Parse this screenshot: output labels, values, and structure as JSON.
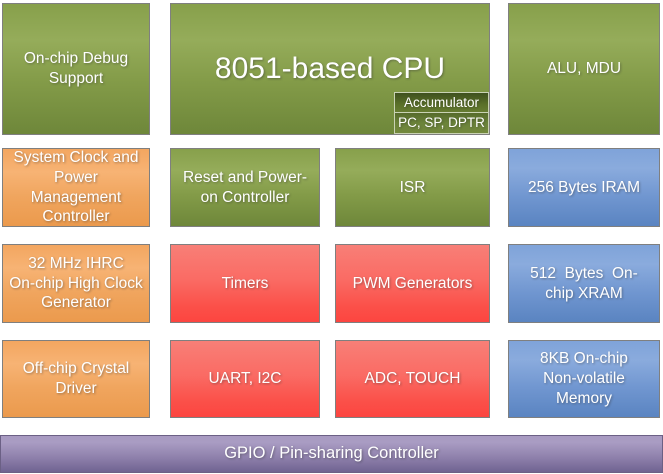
{
  "palette": {
    "green_top": "#95AC5A",
    "green_bottom": "#6E873A",
    "orange_top": "#F7B374",
    "orange_bottom": "#EB9A4D",
    "red_top": "#F87F77",
    "red_bottom": "#FC4540",
    "blue_top": "#7FA3D9",
    "blue_bottom": "#5A84C1",
    "purple_top": "#A89AC1",
    "purple_bottom": "#6F6391",
    "accumulator_dark": "#3F511E",
    "border": "#7F7F7F",
    "text": "#FFFFFF"
  },
  "blocks": {
    "debug": {
      "label": "On-chip Debug\nSupport"
    },
    "cpu": {
      "label": "8051-based CPU",
      "sub": {
        "accumulator": "Accumulator",
        "registers": "PC, SP, DPTR"
      }
    },
    "alu": {
      "label": "ALU, MDU"
    },
    "sysclk": {
      "label": "System Clock and\nPower Management\nController"
    },
    "reset": {
      "label": "Reset and Power-\non Controller"
    },
    "isr": {
      "label": "ISR"
    },
    "iram": {
      "label": "256 Bytes IRAM"
    },
    "ihrc": {
      "label": "32 MHz IHRC\nOn-chip High Clock\nGenerator"
    },
    "timers": {
      "label": "Timers"
    },
    "pwm": {
      "label": "PWM Generators"
    },
    "xram": {
      "label": "512  Bytes  On-\nchip XRAM"
    },
    "crystal": {
      "label": "Off-chip Crystal\nDriver"
    },
    "uart": {
      "label": "UART, I2C"
    },
    "adc": {
      "label": "ADC, TOUCH"
    },
    "nvm": {
      "label": "8KB On-chip\nNon-volatile\nMemory"
    },
    "gpio": {
      "label": "GPIO / Pin-sharing Controller"
    }
  }
}
